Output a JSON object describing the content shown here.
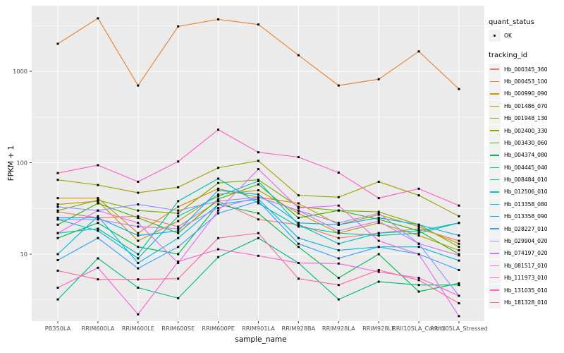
{
  "legend": {
    "quant_status_title": "quant_status",
    "quant_status_items": [
      {
        "label": "OK",
        "glyph": "black-point"
      }
    ],
    "tracking_id_title": "tracking_id"
  },
  "panel": {
    "background": "#EBEBEB",
    "gridline_color": "#FFFFFF",
    "tick_label_color": "#4D4D4D",
    "point_color": "#000000"
  },
  "chart_data": {
    "type": "line",
    "title": "",
    "xlabel": "sample_name",
    "ylabel": "FPKM + 1",
    "y_scale": "log10",
    "y_ticks": [
      10,
      100,
      1000
    ],
    "ylim": [
      1.8,
      5200
    ],
    "grid": true,
    "legend_position": "right",
    "categories": [
      "PB350LA",
      "RRIM600LA",
      "RRIM600LE",
      "RRIM600SE",
      "RRIM600PE",
      "RRIM901LA",
      "RRIM928BA",
      "RRIM928LA",
      "RRIM928LE",
      "RRII105LA_Control",
      "RRII105LA_Stressed"
    ],
    "series": [
      {
        "name": "Hb_000345_360",
        "color": "#F8766D",
        "values": [
          29,
          25,
          26,
          20,
          38,
          24,
          21,
          15,
          17,
          19,
          14
        ]
      },
      {
        "name": "Hb_000453_100",
        "color": "#EA8331",
        "values": [
          2000,
          3800,
          700,
          3100,
          3700,
          3250,
          1500,
          700,
          820,
          1650,
          640
        ]
      },
      {
        "name": "Hb_000990_090",
        "color": "#D89000",
        "values": [
          41,
          41,
          17,
          33,
          52,
          42,
          36,
          21,
          27,
          20,
          13
        ]
      },
      {
        "name": "Hb_001486_070",
        "color": "#C09B00",
        "values": [
          35,
          38,
          14,
          23,
          45,
          50,
          28,
          17,
          22,
          16,
          11
        ]
      },
      {
        "name": "Hb_001948_130",
        "color": "#A3A500",
        "values": [
          65,
          57,
          47,
          54,
          88,
          105,
          44,
          42,
          62,
          44,
          26
        ]
      },
      {
        "name": "Hb_002400_330",
        "color": "#7CAE00",
        "values": [
          30,
          39,
          30,
          28,
          60,
          65,
          33,
          30,
          29,
          21,
          12
        ]
      },
      {
        "name": "Hb_003430_060",
        "color": "#39B600",
        "values": [
          21,
          36,
          25,
          17,
          40,
          58,
          25,
          30,
          24,
          18,
          10
        ]
      },
      {
        "name": "Hb_004374_080",
        "color": "#00BB4E",
        "values": [
          15,
          22,
          12,
          10,
          35,
          28,
          12,
          5.5,
          10,
          3.9,
          4.8
        ]
      },
      {
        "name": "Hb_004445_040",
        "color": "#00BF7D",
        "values": [
          3.2,
          9,
          4.3,
          3.3,
          9.3,
          15,
          8,
          3.2,
          5,
          4.6,
          4.6
        ]
      },
      {
        "name": "Hb_008484_010",
        "color": "#00C1A3",
        "values": [
          17,
          19,
          10,
          38,
          67,
          36,
          20,
          17,
          16,
          17,
          22
        ]
      },
      {
        "name": "Hb_012506_010",
        "color": "#00BFC4",
        "values": [
          24,
          18,
          9,
          26,
          43,
          63,
          21,
          13,
          17,
          18,
          22
        ]
      },
      {
        "name": "Hb_013358_080",
        "color": "#00BAE0",
        "values": [
          10,
          26,
          8,
          15,
          35,
          40,
          15,
          11,
          12,
          12,
          8.5
        ]
      },
      {
        "name": "Hb_013358_090",
        "color": "#00B0F6",
        "values": [
          25,
          25,
          16,
          18,
          50,
          45,
          22,
          21,
          25,
          21,
          16
        ]
      },
      {
        "name": "Hb_028227_010",
        "color": "#35A2FF",
        "values": [
          8.6,
          15,
          7,
          12,
          28,
          38,
          13,
          9,
          12,
          10,
          6.7
        ]
      },
      {
        "name": "Hb_029904_020",
        "color": "#9590FF",
        "values": [
          33,
          30,
          35,
          30,
          38,
          42,
          30,
          22,
          28,
          13,
          3.5
        ]
      },
      {
        "name": "Hb_074197_020",
        "color": "#C77CFF",
        "values": [
          24,
          24,
          20,
          19,
          32,
          42,
          30,
          18,
          23,
          13,
          9.7
        ]
      },
      {
        "name": "Hb_081517_010",
        "color": "#E76BF3",
        "values": [
          17,
          30,
          22,
          8,
          30,
          85,
          32,
          34,
          14,
          10,
          2.1
        ]
      },
      {
        "name": "Hb_111973_010",
        "color": "#FA62DB",
        "values": [
          4.3,
          7.1,
          2.2,
          8.3,
          11.3,
          9.6,
          8,
          7.9,
          6.4,
          5.5,
          3.5
        ]
      },
      {
        "name": "Hb_131035_010",
        "color": "#FF61C9",
        "values": [
          77,
          94,
          62,
          103,
          230,
          130,
          115,
          78,
          41,
          52,
          34
        ]
      },
      {
        "name": "Hb_181328_010",
        "color": "#FF6A98",
        "values": [
          6.6,
          5.3,
          5.3,
          5.4,
          15,
          17,
          5.4,
          4.6,
          6.7,
          5.2,
          2.9
        ]
      }
    ]
  }
}
